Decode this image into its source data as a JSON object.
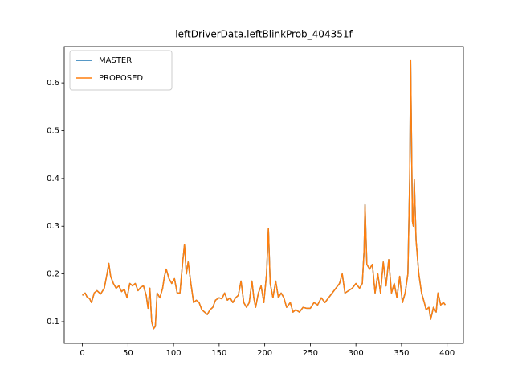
{
  "chart_data": {
    "type": "line",
    "title": "leftDriverData.leftBlinkProb_404351f",
    "x": [
      0,
      3,
      5,
      8,
      10,
      13,
      16,
      20,
      24,
      27,
      29,
      31,
      34,
      37,
      40,
      43,
      46,
      49,
      52,
      55,
      58,
      61,
      64,
      67,
      70,
      72,
      74,
      76,
      78,
      80,
      82,
      85,
      88,
      90,
      92,
      95,
      98,
      101,
      104,
      107,
      110,
      112,
      114,
      116,
      119,
      122,
      125,
      128,
      131,
      134,
      137,
      140,
      143,
      146,
      150,
      153,
      156,
      159,
      162,
      165,
      168,
      171,
      174,
      177,
      180,
      183,
      186,
      188,
      190,
      193,
      196,
      199,
      202,
      204,
      206,
      209,
      212,
      215,
      218,
      221,
      224,
      228,
      231,
      234,
      238,
      242,
      246,
      250,
      254,
      258,
      262,
      266,
      270,
      274,
      278,
      282,
      285,
      288,
      292,
      296,
      300,
      304,
      307,
      309,
      310,
      312,
      315,
      318,
      321,
      324,
      327,
      330,
      333,
      336,
      339,
      342,
      345,
      348,
      351,
      354,
      357,
      359,
      360,
      362,
      363,
      364,
      366,
      369,
      372,
      375,
      377,
      380,
      382,
      385,
      388,
      390,
      393,
      396,
      398
    ],
    "series": [
      {
        "name": "MASTER",
        "color": "#1f77b4",
        "values": [
          0.155,
          0.16,
          0.152,
          0.148,
          0.14,
          0.16,
          0.165,
          0.158,
          0.17,
          0.2,
          0.222,
          0.195,
          0.18,
          0.17,
          0.175,
          0.163,
          0.168,
          0.15,
          0.18,
          0.175,
          0.18,
          0.165,
          0.172,
          0.175,
          0.155,
          0.128,
          0.17,
          0.1,
          0.085,
          0.09,
          0.16,
          0.15,
          0.17,
          0.195,
          0.21,
          0.19,
          0.18,
          0.19,
          0.16,
          0.16,
          0.225,
          0.262,
          0.2,
          0.225,
          0.18,
          0.14,
          0.145,
          0.14,
          0.125,
          0.12,
          0.115,
          0.125,
          0.13,
          0.145,
          0.15,
          0.148,
          0.16,
          0.145,
          0.15,
          0.14,
          0.15,
          0.155,
          0.185,
          0.14,
          0.13,
          0.14,
          0.185,
          0.15,
          0.13,
          0.16,
          0.175,
          0.14,
          0.2,
          0.295,
          0.18,
          0.15,
          0.185,
          0.15,
          0.16,
          0.15,
          0.13,
          0.14,
          0.12,
          0.125,
          0.12,
          0.13,
          0.128,
          0.128,
          0.14,
          0.135,
          0.15,
          0.14,
          0.15,
          0.16,
          0.17,
          0.18,
          0.2,
          0.16,
          0.165,
          0.17,
          0.18,
          0.17,
          0.18,
          0.25,
          0.345,
          0.22,
          0.21,
          0.22,
          0.16,
          0.2,
          0.16,
          0.225,
          0.175,
          0.23,
          0.16,
          0.18,
          0.15,
          0.195,
          0.14,
          0.16,
          0.2,
          0.4,
          0.648,
          0.31,
          0.3,
          0.398,
          0.27,
          0.2,
          0.16,
          0.14,
          0.125,
          0.13,
          0.105,
          0.13,
          0.12,
          0.16,
          0.135,
          0.14,
          0.135
        ]
      },
      {
        "name": "PROPOSED",
        "color": "#ff7f0e",
        "values": [
          0.155,
          0.16,
          0.152,
          0.148,
          0.14,
          0.16,
          0.165,
          0.158,
          0.17,
          0.2,
          0.222,
          0.195,
          0.18,
          0.17,
          0.175,
          0.163,
          0.168,
          0.15,
          0.18,
          0.175,
          0.18,
          0.165,
          0.172,
          0.175,
          0.155,
          0.128,
          0.17,
          0.1,
          0.085,
          0.09,
          0.16,
          0.15,
          0.17,
          0.195,
          0.21,
          0.19,
          0.18,
          0.19,
          0.16,
          0.16,
          0.225,
          0.262,
          0.2,
          0.225,
          0.18,
          0.14,
          0.145,
          0.14,
          0.125,
          0.12,
          0.115,
          0.125,
          0.13,
          0.145,
          0.15,
          0.148,
          0.16,
          0.145,
          0.15,
          0.14,
          0.15,
          0.155,
          0.185,
          0.14,
          0.13,
          0.14,
          0.185,
          0.15,
          0.13,
          0.16,
          0.175,
          0.14,
          0.2,
          0.295,
          0.18,
          0.15,
          0.185,
          0.15,
          0.16,
          0.15,
          0.13,
          0.14,
          0.12,
          0.125,
          0.12,
          0.13,
          0.128,
          0.128,
          0.14,
          0.135,
          0.15,
          0.14,
          0.15,
          0.16,
          0.17,
          0.18,
          0.2,
          0.16,
          0.165,
          0.17,
          0.18,
          0.17,
          0.18,
          0.25,
          0.345,
          0.22,
          0.21,
          0.22,
          0.16,
          0.2,
          0.16,
          0.225,
          0.175,
          0.23,
          0.16,
          0.18,
          0.15,
          0.195,
          0.14,
          0.16,
          0.2,
          0.4,
          0.648,
          0.31,
          0.3,
          0.398,
          0.27,
          0.2,
          0.16,
          0.14,
          0.125,
          0.13,
          0.105,
          0.13,
          0.12,
          0.16,
          0.135,
          0.14,
          0.135
        ]
      }
    ],
    "xlim": [
      -19.9,
      417.9
    ],
    "ylim": [
      0.0545,
      0.676
    ],
    "xticks": [
      0,
      50,
      100,
      150,
      200,
      250,
      300,
      350,
      400
    ],
    "yticks": [
      0.1,
      0.2,
      0.3,
      0.4,
      0.5,
      0.6
    ],
    "legend": "upper left",
    "grid": false
  }
}
